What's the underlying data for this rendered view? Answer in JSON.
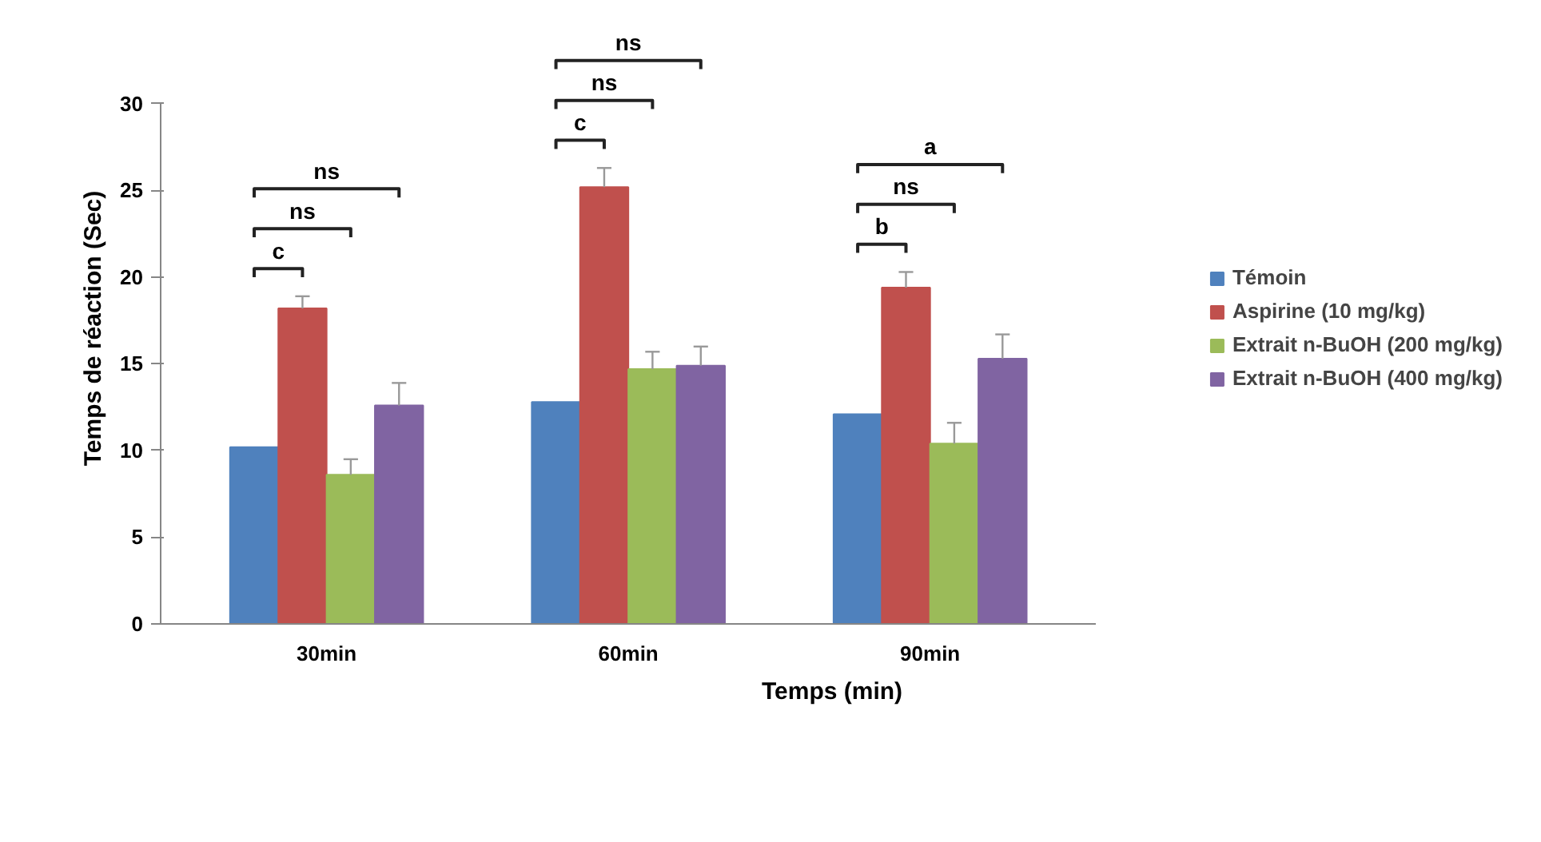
{
  "chart_data": {
    "type": "bar",
    "xlabel": "Temps (min)",
    "ylabel": "Temps de réaction (Sec)",
    "categories": [
      "30min",
      "60min",
      "90min"
    ],
    "series": [
      {
        "name": "Témoin",
        "color": "#4f81bd",
        "values": [
          10.2,
          12.8,
          12.1
        ]
      },
      {
        "name": "Aspirine (10 mg/kg)",
        "color": "#c0504d",
        "values": [
          18.2,
          25.2,
          19.4
        ],
        "errors": [
          0.7,
          1.1,
          0.9
        ]
      },
      {
        "name": "Extrait n-BuOH (200 mg/kg)",
        "color": "#9bbb59",
        "values": [
          8.6,
          14.7,
          10.4
        ],
        "errors": [
          0.9,
          1.0,
          1.2
        ]
      },
      {
        "name": "Extrait n-BuOH (400 mg/kg)",
        "color": "#8064a2",
        "values": [
          12.6,
          14.9,
          15.3
        ],
        "errors": [
          1.3,
          1.1,
          1.4
        ]
      }
    ],
    "ylim": [
      0,
      30
    ],
    "yticks": [
      0,
      5,
      10,
      15,
      20,
      25,
      30
    ],
    "grid": false,
    "legend": "right",
    "annotations": [
      "c",
      "ns",
      "ns",
      "c",
      "ns",
      "ns",
      "b",
      "ns",
      "a"
    ]
  }
}
